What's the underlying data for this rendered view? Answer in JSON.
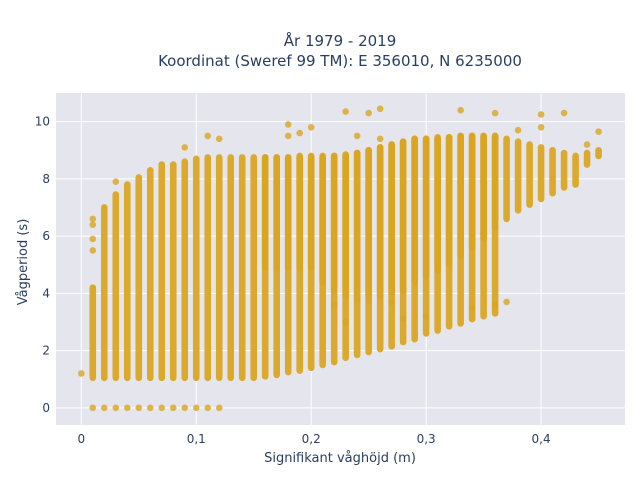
{
  "chart_data": {
    "type": "scatter",
    "title_line1": "År 1979 - 2019",
    "title_line2": "Koordinat (Sweref 99 TM): E 356010, N 6235000",
    "xlabel": "Signifikant våghöjd (m)",
    "ylabel": "Vågperiod (s)",
    "xlim": [
      -0.022,
      0.473
    ],
    "ylim": [
      -0.6,
      11.0
    ],
    "grid": true,
    "marker_color": "#DAA520",
    "plot_background": "#E5E5EE",
    "x_ticks": [
      {
        "value": 0,
        "label": "0"
      },
      {
        "value": 0.1,
        "label": "0,1"
      },
      {
        "value": 0.2,
        "label": "0,2"
      },
      {
        "value": 0.3,
        "label": "0,3"
      },
      {
        "value": 0.4,
        "label": "0,4"
      }
    ],
    "y_ticks": [
      {
        "value": 0,
        "label": "0"
      },
      {
        "value": 2,
        "label": "2"
      },
      {
        "value": 4,
        "label": "4"
      },
      {
        "value": 6,
        "label": "6"
      },
      {
        "value": 8,
        "label": "8"
      },
      {
        "value": 10,
        "label": "10"
      }
    ],
    "columns": [
      {
        "x": 0.0,
        "ymin": 1.2,
        "ymax": 1.2
      },
      {
        "x": 0.01,
        "ymin": 1.05,
        "ymax": 4.2
      },
      {
        "x": 0.02,
        "ymin": 1.05,
        "ymax": 7.0
      },
      {
        "x": 0.03,
        "ymin": 1.05,
        "ymax": 7.45
      },
      {
        "x": 0.04,
        "ymin": 1.05,
        "ymax": 7.8
      },
      {
        "x": 0.05,
        "ymin": 1.05,
        "ymax": 8.05
      },
      {
        "x": 0.06,
        "ymin": 1.05,
        "ymax": 8.3
      },
      {
        "x": 0.07,
        "ymin": 1.05,
        "ymax": 8.5
      },
      {
        "x": 0.08,
        "ymin": 1.05,
        "ymax": 8.5
      },
      {
        "x": 0.09,
        "ymin": 1.05,
        "ymax": 8.6
      },
      {
        "x": 0.1,
        "ymin": 1.05,
        "ymax": 8.7
      },
      {
        "x": 0.11,
        "ymin": 1.05,
        "ymax": 8.75
      },
      {
        "x": 0.12,
        "ymin": 1.05,
        "ymax": 8.75
      },
      {
        "x": 0.13,
        "ymin": 1.05,
        "ymax": 8.75
      },
      {
        "x": 0.14,
        "ymin": 1.05,
        "ymax": 8.75
      },
      {
        "x": 0.15,
        "ymin": 1.05,
        "ymax": 8.75
      },
      {
        "x": 0.16,
        "ymin": 1.1,
        "ymax": 8.75
      },
      {
        "x": 0.17,
        "ymin": 1.15,
        "ymax": 8.75
      },
      {
        "x": 0.18,
        "ymin": 1.25,
        "ymax": 8.75
      },
      {
        "x": 0.19,
        "ymin": 1.3,
        "ymax": 8.75
      },
      {
        "x": 0.2,
        "ymin": 1.4,
        "ymax": 8.75
      },
      {
        "x": 0.21,
        "ymin": 1.5,
        "ymax": 8.75
      },
      {
        "x": 0.22,
        "ymin": 1.6,
        "ymax": 8.8
      },
      {
        "x": 0.23,
        "ymin": 1.75,
        "ymax": 8.8
      },
      {
        "x": 0.24,
        "ymin": 1.85,
        "ymax": 8.9
      },
      {
        "x": 0.25,
        "ymin": 1.95,
        "ymax": 9.0
      },
      {
        "x": 0.26,
        "ymin": 2.05,
        "ymax": 9.1
      },
      {
        "x": 0.27,
        "ymin": 2.15,
        "ymax": 9.2
      },
      {
        "x": 0.28,
        "ymin": 2.3,
        "ymax": 9.3
      },
      {
        "x": 0.29,
        "ymin": 2.4,
        "ymax": 9.4
      },
      {
        "x": 0.3,
        "ymin": 2.6,
        "ymax": 9.4
      },
      {
        "x": 0.31,
        "ymin": 2.7,
        "ymax": 9.4
      },
      {
        "x": 0.32,
        "ymin": 2.85,
        "ymax": 9.45
      },
      {
        "x": 0.33,
        "ymin": 2.95,
        "ymax": 9.5
      },
      {
        "x": 0.34,
        "ymin": 3.1,
        "ymax": 9.5
      },
      {
        "x": 0.35,
        "ymin": 3.2,
        "ymax": 9.5
      },
      {
        "x": 0.36,
        "ymin": 3.3,
        "ymax": 9.5
      }
    ],
    "upper_band": [
      {
        "x": 0.16,
        "ymin": 4.9,
        "ymax": 8.75
      },
      {
        "x": 0.17,
        "ymin": 4.9,
        "ymax": 8.75
      },
      {
        "x": 0.18,
        "ymin": 4.9,
        "ymax": 8.75
      },
      {
        "x": 0.19,
        "ymin": 4.9,
        "ymax": 8.8
      },
      {
        "x": 0.2,
        "ymin": 4.9,
        "ymax": 8.8
      },
      {
        "x": 0.21,
        "ymin": 4.4,
        "ymax": 8.8
      },
      {
        "x": 0.22,
        "ymin": 4.1,
        "ymax": 8.8
      },
      {
        "x": 0.23,
        "ymin": 3.9,
        "ymax": 8.85
      },
      {
        "x": 0.24,
        "ymin": 3.9,
        "ymax": 8.9
      },
      {
        "x": 0.25,
        "ymin": 3.9,
        "ymax": 9.0
      },
      {
        "x": 0.26,
        "ymin": 3.9,
        "ymax": 9.1
      },
      {
        "x": 0.27,
        "ymin": 4.0,
        "ymax": 9.2
      },
      {
        "x": 0.28,
        "ymin": 4.1,
        "ymax": 9.3
      },
      {
        "x": 0.29,
        "ymin": 4.4,
        "ymax": 9.4
      },
      {
        "x": 0.3,
        "ymin": 4.6,
        "ymax": 9.4
      },
      {
        "x": 0.31,
        "ymin": 4.8,
        "ymax": 9.45
      },
      {
        "x": 0.32,
        "ymin": 5.0,
        "ymax": 9.45
      },
      {
        "x": 0.33,
        "ymin": 5.3,
        "ymax": 9.5
      },
      {
        "x": 0.34,
        "ymin": 5.6,
        "ymax": 9.5
      },
      {
        "x": 0.35,
        "ymin": 5.9,
        "ymax": 9.5
      },
      {
        "x": 0.36,
        "ymin": 6.3,
        "ymax": 9.5
      },
      {
        "x": 0.37,
        "ymin": 6.6,
        "ymax": 9.4
      },
      {
        "x": 0.38,
        "ymin": 6.9,
        "ymax": 9.3
      },
      {
        "x": 0.39,
        "ymin": 7.1,
        "ymax": 9.2
      },
      {
        "x": 0.4,
        "ymin": 7.3,
        "ymax": 9.1
      },
      {
        "x": 0.41,
        "ymin": 7.5,
        "ymax": 9.0
      },
      {
        "x": 0.42,
        "ymin": 7.7,
        "ymax": 8.9
      },
      {
        "x": 0.43,
        "ymin": 7.8,
        "ymax": 8.8
      },
      {
        "x": 0.44,
        "ymin": 8.5,
        "ymax": 8.9
      },
      {
        "x": 0.45,
        "ymin": 8.8,
        "ymax": 9.0
      }
    ],
    "extra_points": [
      {
        "x": 0.01,
        "y": 6.6
      },
      {
        "x": 0.01,
        "y": 6.4
      },
      {
        "x": 0.01,
        "y": 5.9
      },
      {
        "x": 0.01,
        "y": 5.5
      },
      {
        "x": 0.03,
        "y": 7.9
      },
      {
        "x": 0.09,
        "y": 9.1
      },
      {
        "x": 0.11,
        "y": 9.5
      },
      {
        "x": 0.12,
        "y": 9.4
      },
      {
        "x": 0.18,
        "y": 9.9
      },
      {
        "x": 0.18,
        "y": 9.5
      },
      {
        "x": 0.19,
        "y": 9.6
      },
      {
        "x": 0.2,
        "y": 9.8
      },
      {
        "x": 0.23,
        "y": 10.35
      },
      {
        "x": 0.24,
        "y": 9.5
      },
      {
        "x": 0.25,
        "y": 10.3
      },
      {
        "x": 0.26,
        "y": 10.45
      },
      {
        "x": 0.26,
        "y": 9.4
      },
      {
        "x": 0.33,
        "y": 10.4
      },
      {
        "x": 0.36,
        "y": 10.3
      },
      {
        "x": 0.4,
        "y": 10.25
      },
      {
        "x": 0.42,
        "y": 10.3
      },
      {
        "x": 0.4,
        "y": 9.8
      },
      {
        "x": 0.45,
        "y": 9.65
      },
      {
        "x": 0.44,
        "y": 9.2
      },
      {
        "x": 0.38,
        "y": 9.7
      },
      {
        "x": 0.34,
        "y": 6.2
      },
      {
        "x": 0.35,
        "y": 6.1
      },
      {
        "x": 0.31,
        "y": 5.2
      },
      {
        "x": 0.24,
        "y": 3.8
      },
      {
        "x": 0.25,
        "y": 3.75
      },
      {
        "x": 0.26,
        "y": 3.9
      },
      {
        "x": 0.27,
        "y": 3.7
      },
      {
        "x": 0.22,
        "y": 3.6
      },
      {
        "x": 0.23,
        "y": 3.0
      },
      {
        "x": 0.37,
        "y": 3.7
      },
      {
        "x": 0.36,
        "y": 3.6
      },
      {
        "x": 0.34,
        "y": 3.5
      },
      {
        "x": 0.3,
        "y": 3.2
      },
      {
        "x": 0.28,
        "y": 3.1
      }
    ],
    "zero_points": [
      0.01,
      0.02,
      0.03,
      0.04,
      0.05,
      0.06,
      0.07,
      0.08,
      0.09,
      0.1,
      0.11,
      0.12
    ]
  }
}
